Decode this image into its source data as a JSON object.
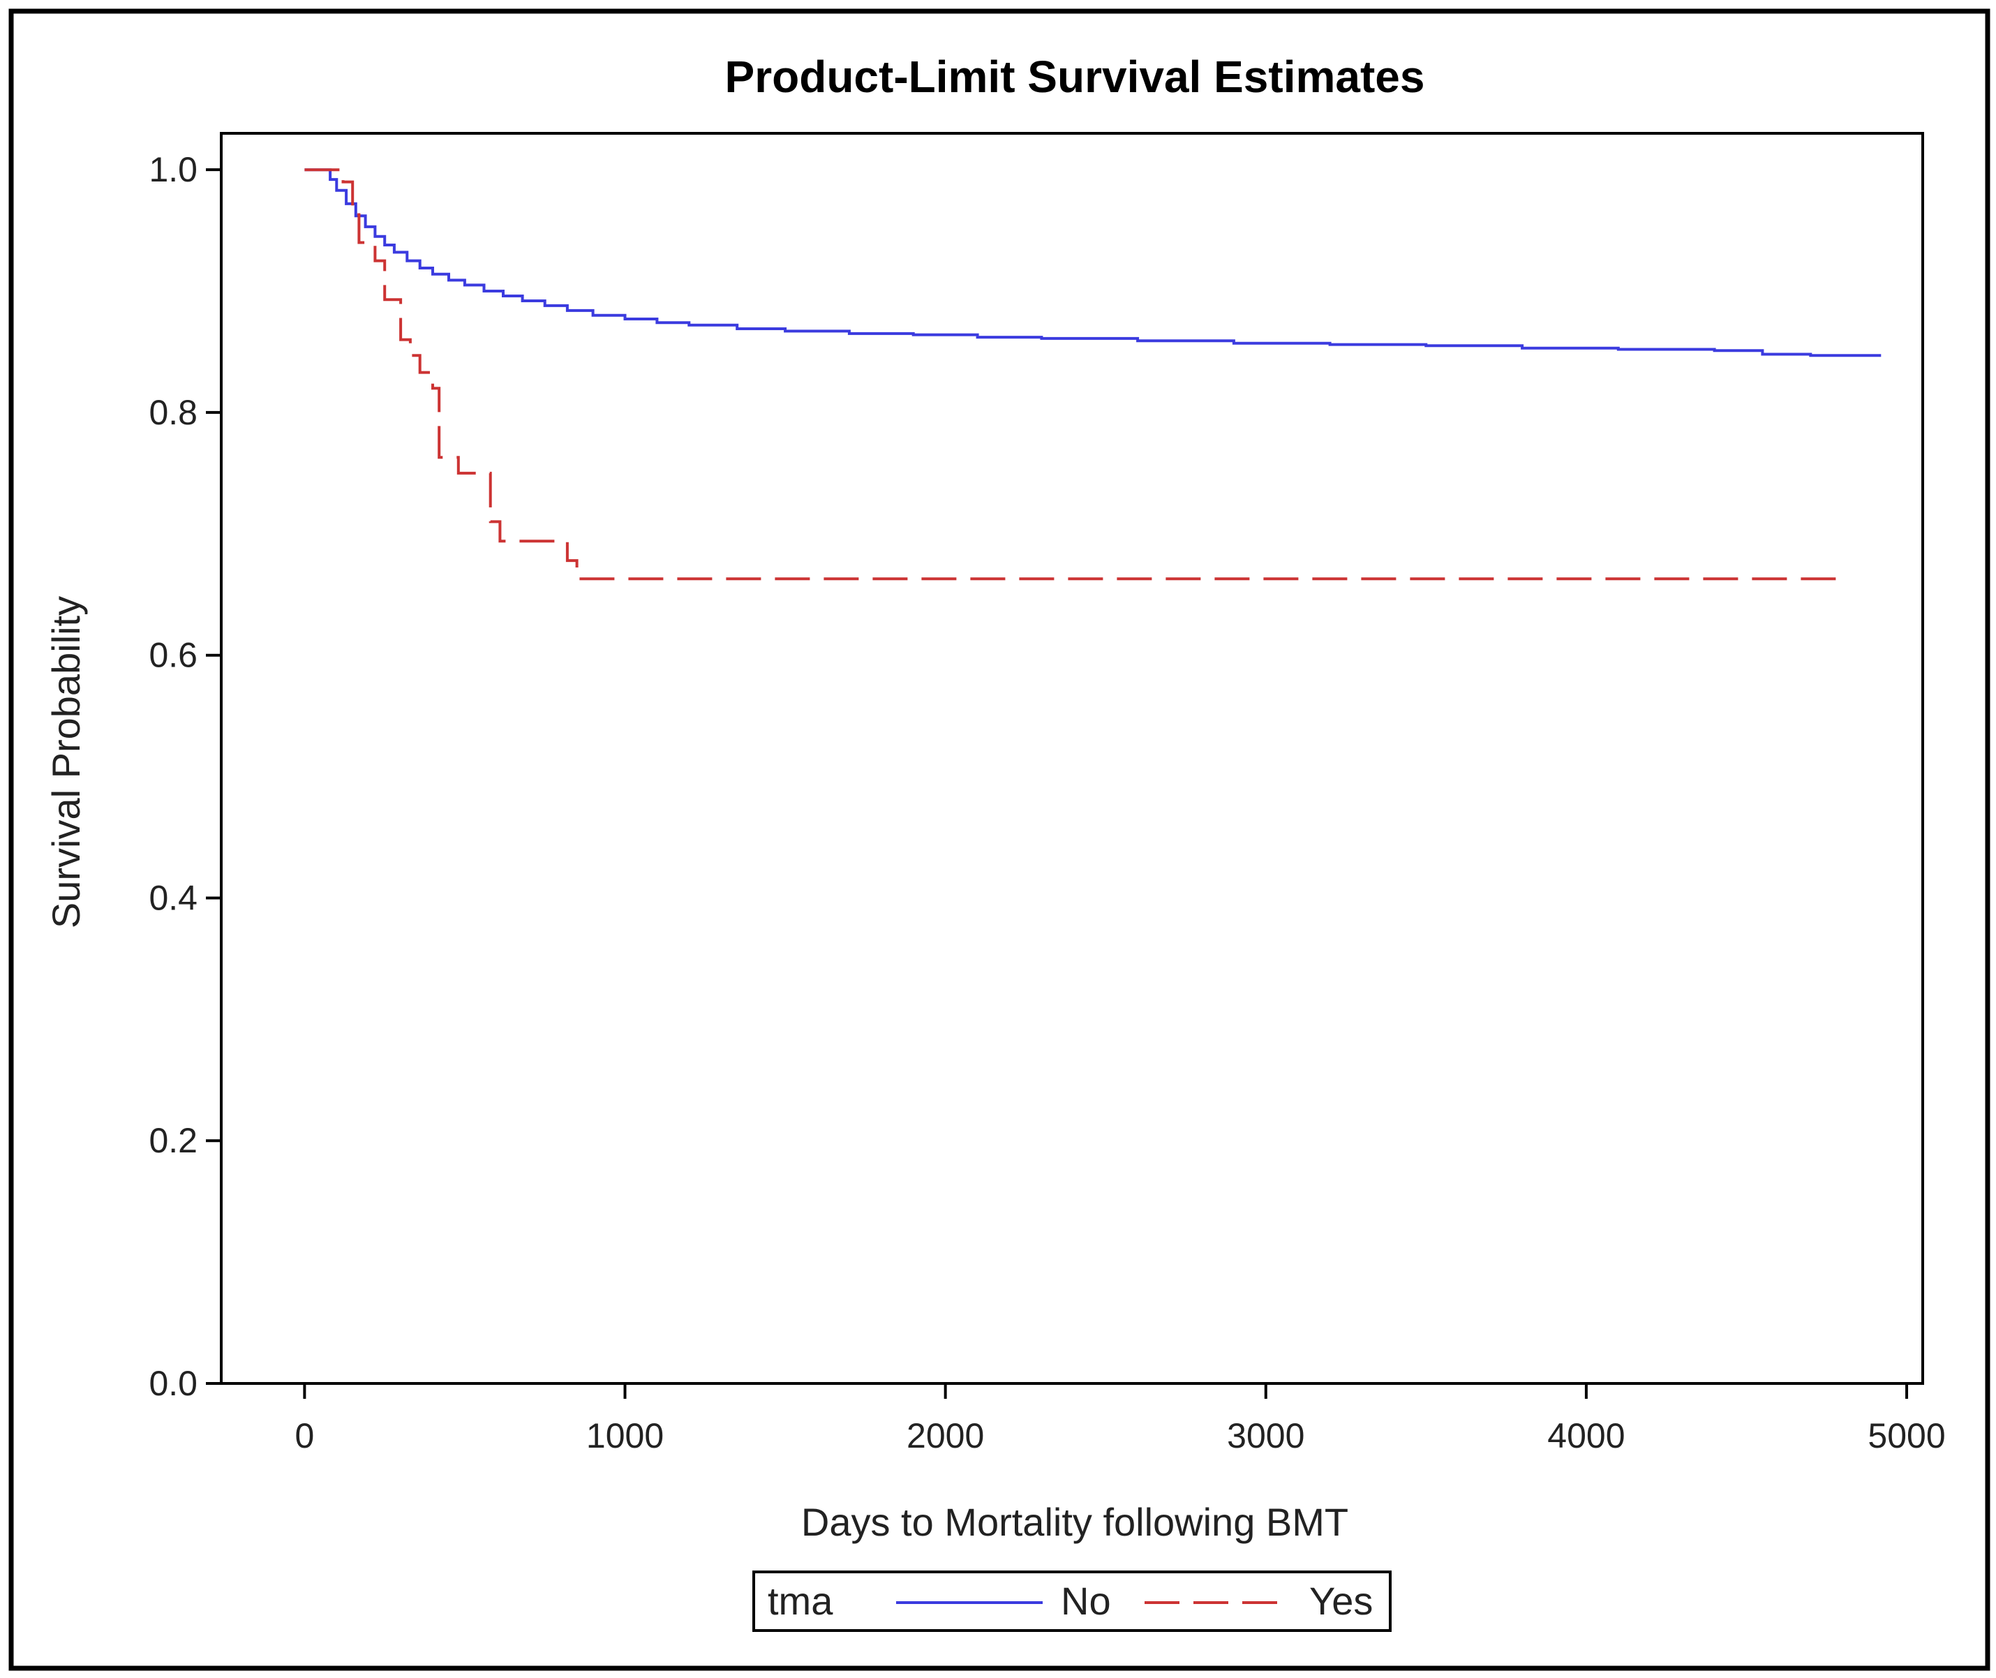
{
  "chart_data": {
    "type": "line",
    "title": "Product-Limit Survival Estimates",
    "xlabel": "Days to Mortality following BMT",
    "ylabel": "Survival Probability",
    "xlim": [
      -260,
      5050
    ],
    "ylim": [
      0.0,
      1.03
    ],
    "xticks": [
      0,
      1000,
      2000,
      3000,
      4000,
      5000
    ],
    "xtick_labels": [
      "0",
      "1000",
      "2000",
      "3000",
      "4000",
      "5000"
    ],
    "yticks": [
      0.0,
      0.2,
      0.4,
      0.6,
      0.8,
      1.0
    ],
    "ytick_labels": [
      "0.0",
      "0.2",
      "0.4",
      "0.6",
      "0.8",
      "1.0"
    ],
    "grid": false,
    "legend": {
      "title": "tma",
      "position": "bottom-center"
    },
    "series": [
      {
        "name": "No",
        "color": "#3b3bdf",
        "style": "solid",
        "x": [
          0,
          50,
          80,
          100,
          130,
          160,
          190,
          220,
          250,
          280,
          320,
          360,
          400,
          450,
          500,
          560,
          620,
          680,
          750,
          820,
          900,
          1000,
          1100,
          1200,
          1350,
          1500,
          1700,
          1900,
          2100,
          2300,
          2600,
          2900,
          3200,
          3500,
          3800,
          4100,
          4400,
          4550,
          4700,
          4920
        ],
        "y": [
          1.0,
          1.0,
          0.992,
          0.983,
          0.972,
          0.962,
          0.953,
          0.945,
          0.938,
          0.932,
          0.925,
          0.919,
          0.914,
          0.909,
          0.905,
          0.9,
          0.896,
          0.892,
          0.888,
          0.884,
          0.88,
          0.877,
          0.874,
          0.872,
          0.869,
          0.867,
          0.865,
          0.864,
          0.862,
          0.861,
          0.859,
          0.857,
          0.856,
          0.855,
          0.853,
          0.852,
          0.851,
          0.848,
          0.847,
          0.847
        ]
      },
      {
        "name": "Yes",
        "color": "#cc3333",
        "style": "dashed",
        "x": [
          0,
          120,
          150,
          170,
          220,
          250,
          300,
          330,
          360,
          400,
          420,
          480,
          580,
          610,
          820,
          850,
          4780
        ],
        "y": [
          1.0,
          0.99,
          0.963,
          0.94,
          0.925,
          0.893,
          0.86,
          0.847,
          0.833,
          0.82,
          0.763,
          0.75,
          0.71,
          0.694,
          0.678,
          0.663,
          0.663
        ]
      }
    ]
  }
}
